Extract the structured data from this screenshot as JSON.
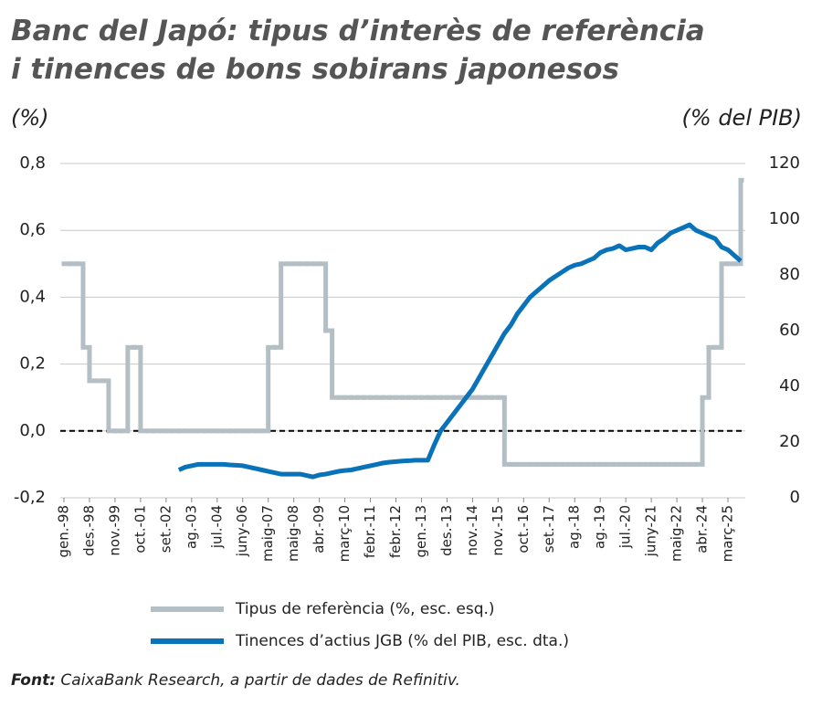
{
  "chart_data": {
    "type": "line",
    "title_lines": [
      "Banc del Japó: tipus d’interès de referència",
      "i tinences de bons sobirans japonesos"
    ],
    "y_label": "(%)",
    "y2_label": "(% del PIB)",
    "source_label": "Font:",
    "source": "CaixaBank Research, a partir de dades de Refinitiv.",
    "categories": [
      "gen.-98",
      null,
      null,
      null,
      "des.-98",
      null,
      null,
      null,
      "nov.-99",
      null,
      null,
      null,
      "oct.-01",
      null,
      null,
      null,
      "set.-02",
      null,
      null,
      null,
      "ag.-03",
      null,
      null,
      null,
      "jul.-04",
      null,
      null,
      null,
      "juny-06",
      null,
      null,
      null,
      "maig-07",
      null,
      null,
      null,
      "maig-08",
      null,
      null,
      null,
      "abr.-09",
      null,
      null,
      null,
      "març-10",
      null,
      null,
      null,
      "febr.-11",
      null,
      null,
      null,
      "febr.-12",
      null,
      null,
      null,
      "gen.-13",
      null,
      null,
      null,
      "des.-13",
      null,
      null,
      null,
      "nov.-14",
      null,
      null,
      null,
      "nov.-15",
      null,
      null,
      null,
      "oct.-16",
      null,
      null,
      null,
      "set.-17",
      null,
      null,
      null,
      "ag.-18",
      null,
      null,
      null,
      "ag.-19",
      null,
      null,
      null,
      "jul.-20",
      null,
      null,
      null,
      "juny-21",
      null,
      null,
      null,
      "maig-22",
      null,
      null,
      null,
      "abr.-24",
      null,
      null,
      null,
      "març-25",
      null,
      null
    ],
    "series": [
      {
        "name": "Tipus de referència (%, esc. esq.)",
        "color": "#b3bfc4",
        "axis": "y",
        "style": "step",
        "values": [
          0.5,
          0.5,
          0.5,
          0.25,
          0.15,
          0.15,
          0.15,
          0,
          0,
          0,
          0.25,
          0.25,
          0,
          0,
          0,
          0,
          0,
          0,
          0,
          0,
          0,
          0,
          0,
          0,
          0,
          0,
          0,
          0,
          0,
          0,
          0,
          0,
          0.25,
          0.25,
          0.5,
          0.5,
          0.5,
          0.5,
          0.5,
          0.5,
          0.5,
          0.3,
          0.1,
          0.1,
          0.1,
          0.1,
          0.1,
          0.1,
          0.1,
          0.1,
          0.1,
          0.1,
          0.1,
          0.1,
          0.1,
          0.1,
          0.1,
          0.1,
          0.1,
          0.1,
          0.1,
          0.1,
          0.1,
          0.1,
          0.1,
          0.1,
          0.1,
          0.1,
          0.1,
          -0.1,
          -0.1,
          -0.1,
          -0.1,
          -0.1,
          -0.1,
          -0.1,
          -0.1,
          -0.1,
          -0.1,
          -0.1,
          -0.1,
          -0.1,
          -0.1,
          -0.1,
          -0.1,
          -0.1,
          -0.1,
          -0.1,
          -0.1,
          -0.1,
          -0.1,
          -0.1,
          -0.1,
          -0.1,
          -0.1,
          -0.1,
          -0.1,
          -0.1,
          -0.1,
          -0.1,
          0.1,
          0.25,
          0.25,
          0.5,
          0.5,
          0.5,
          0.75
        ]
      },
      {
        "name": "Tinences d’actius JGB (% del PIB, esc. dta.)",
        "color": "#0a72b8",
        "axis": "y2",
        "style": "line",
        "values": [
          null,
          null,
          null,
          null,
          null,
          null,
          null,
          null,
          null,
          null,
          null,
          null,
          null,
          null,
          null,
          null,
          null,
          null,
          10,
          11,
          11.5,
          12,
          12,
          12,
          12,
          12,
          11.8,
          11.7,
          11.5,
          11,
          10.5,
          10,
          9.5,
          9,
          8.5,
          8.5,
          8.5,
          8.5,
          8,
          7.5,
          8.2,
          8.5,
          9,
          9.5,
          9.8,
          10,
          10.5,
          11,
          11.5,
          12,
          12.5,
          12.8,
          13,
          13.2,
          13.3,
          13.5,
          13.5,
          13.5,
          19,
          24,
          27,
          30,
          33,
          36,
          39,
          43,
          47,
          51,
          55,
          59,
          62,
          66,
          69,
          72,
          74,
          76,
          78,
          79.5,
          81,
          82.5,
          83.5,
          84,
          85,
          86,
          88,
          89,
          89.5,
          90.5,
          89,
          89.5,
          90,
          90,
          89,
          91.5,
          93,
          95,
          96,
          97,
          98,
          96,
          95,
          94,
          93,
          90,
          89,
          87,
          85
        ]
      }
    ],
    "ylim": [
      -0.2,
      0.8
    ],
    "yticks": [
      {
        "value": -0.2,
        "label": "-0,2"
      },
      {
        "value": 0,
        "label": "0,0"
      },
      {
        "value": 0.2,
        "label": "0,2"
      },
      {
        "value": 0.4,
        "label": "0,4"
      },
      {
        "value": 0.6,
        "label": "0,6"
      },
      {
        "value": 0.8,
        "label": "0,8"
      }
    ],
    "y2lim": [
      0,
      120
    ],
    "y2ticks": [
      0,
      20,
      40,
      60,
      80,
      100,
      120
    ],
    "grid": true,
    "zero_line": true,
    "legend": "bottom"
  }
}
